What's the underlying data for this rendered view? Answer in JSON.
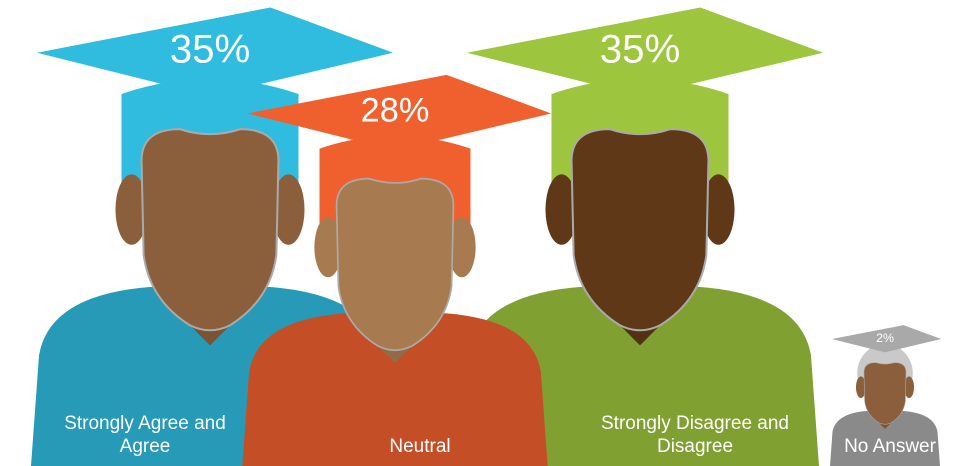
{
  "chart_data": {
    "type": "pictorial",
    "categories": [
      "Strongly Agree and Agree",
      "Neutral",
      "Strongly Disagree and Disagree",
      "No Answer"
    ],
    "values": [
      35,
      28,
      35,
      2
    ],
    "value_labels": [
      "35%",
      "28%",
      "35%",
      "2%"
    ],
    "colors": [
      "#2fbcde",
      "#f0602f",
      "#9dc53d",
      "#a9a9a9"
    ]
  }
}
